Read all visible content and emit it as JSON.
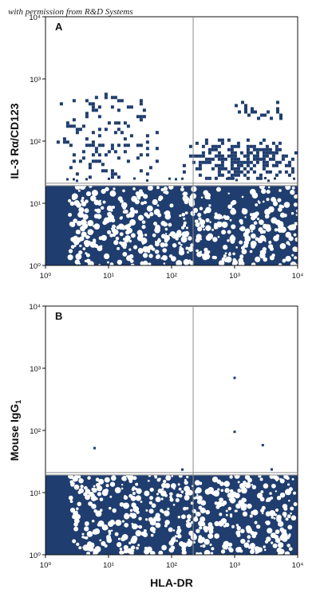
{
  "watermark": "with permission from R&D Systems",
  "colors": {
    "dots": "#1f3d6e",
    "frame": "#111111",
    "gate": "#8c8c8c"
  },
  "chart_data": [
    {
      "type": "scatter",
      "panel": "A",
      "xlabel": "",
      "ylabel": "IL-3 Rα/CD123",
      "xscale": "log",
      "yscale": "log",
      "xlim": [
        1,
        10000
      ],
      "ylim": [
        1,
        10000
      ],
      "x_ticks": [
        "10⁰",
        "10¹",
        "10²",
        "10³",
        "10⁴"
      ],
      "y_ticks": [
        "10⁰",
        "10¹",
        "10²",
        "10³",
        "10⁴"
      ],
      "quadrant_gate": {
        "x": 220,
        "y": 21
      },
      "populations": [
        {
          "x_range": [
            1,
            10000
          ],
          "y_range": [
            1,
            19
          ],
          "density": "dense"
        },
        {
          "x_range": [
            150,
            9000
          ],
          "y_range": [
            25,
            110
          ],
          "density": "moderate"
        },
        {
          "x_range": [
            1000,
            7000
          ],
          "y_range": [
            200,
            500
          ],
          "density": "sparse"
        },
        {
          "x_range": [
            1.5,
            60
          ],
          "y_range": [
            25,
            600
          ],
          "density": "sparse"
        }
      ]
    },
    {
      "type": "scatter",
      "panel": "B",
      "xlabel": "HLA-DR",
      "ylabel": "Mouse IgG1",
      "xscale": "log",
      "yscale": "log",
      "xlim": [
        1,
        10000
      ],
      "ylim": [
        1,
        10000
      ],
      "x_ticks": [
        "10⁰",
        "10¹",
        "10²",
        "10³",
        "10⁴"
      ],
      "y_ticks": [
        "10⁰",
        "10¹",
        "10²",
        "10³",
        "10⁴"
      ],
      "quadrant_gate": {
        "x": 220,
        "y": 21
      },
      "populations": [
        {
          "x_range": [
            1,
            10000
          ],
          "y_range": [
            1,
            19
          ],
          "density": "dense"
        }
      ],
      "outliers": [
        {
          "x": 1000,
          "y": 700
        },
        {
          "x": 1000,
          "y": 95
        },
        {
          "x": 2800,
          "y": 58
        },
        {
          "x": 6,
          "y": 52
        }
      ]
    }
  ]
}
